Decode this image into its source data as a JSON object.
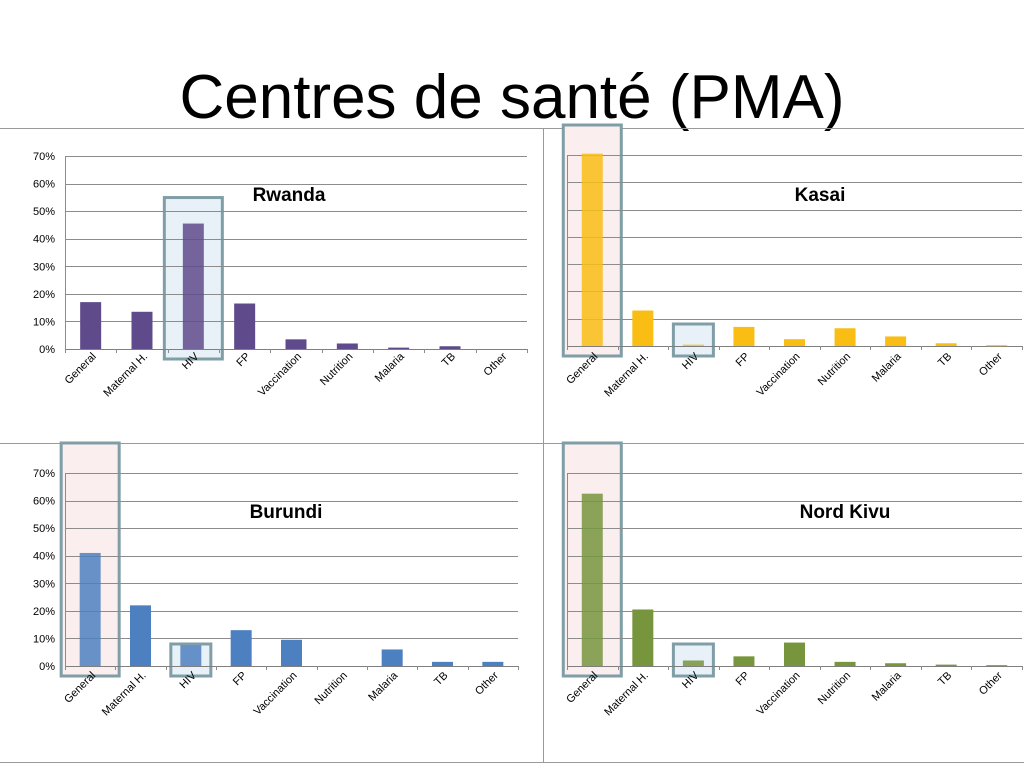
{
  "page": {
    "title": "Centres de santé (PMA)"
  },
  "chart_data": [
    {
      "type": "bar",
      "title": "Rwanda",
      "categories": [
        "General",
        "Maternal H.",
        "HIV",
        "FP",
        "Vaccination",
        "Nutrition",
        "Malaria",
        "TB",
        "Other"
      ],
      "values": [
        17,
        13.5,
        45.5,
        16.5,
        3.5,
        2,
        0.5,
        1,
        0
      ],
      "ylim": [
        0,
        70
      ],
      "yticks": [
        "0%",
        "10%",
        "20%",
        "30%",
        "40%",
        "50%",
        "60%",
        "70%"
      ],
      "color": "#5f4b8b",
      "highlights": [
        {
          "category": "HIV",
          "fill": "#e8f1f8"
        }
      ],
      "grid": true
    },
    {
      "type": "bar",
      "title": "Kasai",
      "categories": [
        "General",
        "Maternal H.",
        "HIV",
        "FP",
        "Vaccination",
        "Nutrition",
        "Malaria",
        "TB",
        "Other"
      ],
      "values": [
        70.5,
        13,
        0.5,
        7,
        2.5,
        6.5,
        3.5,
        1,
        0.3
      ],
      "ylim": [
        0,
        70
      ],
      "yticks": [],
      "color": "#f9bd14",
      "highlights": [
        {
          "category": "General",
          "fill": "#fbeeee"
        },
        {
          "category": "HIV",
          "fill": "#e8f1f8"
        }
      ],
      "grid": true
    },
    {
      "type": "bar",
      "title": "Burundi",
      "categories": [
        "General",
        "Maternal H.",
        "HIV",
        "FP",
        "Vaccination",
        "Nutrition",
        "Malaria",
        "TB",
        "Other"
      ],
      "values": [
        41,
        22,
        7.5,
        13,
        9.5,
        0,
        6,
        1.5,
        1.5
      ],
      "ylim": [
        0,
        70
      ],
      "yticks": [
        "0%",
        "10%",
        "20%",
        "30%",
        "40%",
        "50%",
        "60%",
        "70%"
      ],
      "color": "#4d80c0",
      "highlights": [
        {
          "category": "General",
          "fill": "#fbeeee"
        },
        {
          "category": "HIV",
          "fill": "#e8f1f8"
        }
      ],
      "grid": true
    },
    {
      "type": "bar",
      "title": "Nord Kivu",
      "categories": [
        "General",
        "Maternal H.",
        "HIV",
        "FP",
        "Vaccination",
        "Nutrition",
        "Malaria",
        "TB",
        "Other"
      ],
      "values": [
        62.5,
        20.5,
        2,
        3.5,
        8.5,
        1.5,
        1,
        0.5,
        0.3
      ],
      "ylim": [
        0,
        70
      ],
      "yticks": [],
      "color": "#77953d",
      "highlights": [
        {
          "category": "General",
          "fill": "#fbeeee"
        },
        {
          "category": "HIV",
          "fill": "#e8f1f8"
        }
      ],
      "grid": true
    }
  ]
}
